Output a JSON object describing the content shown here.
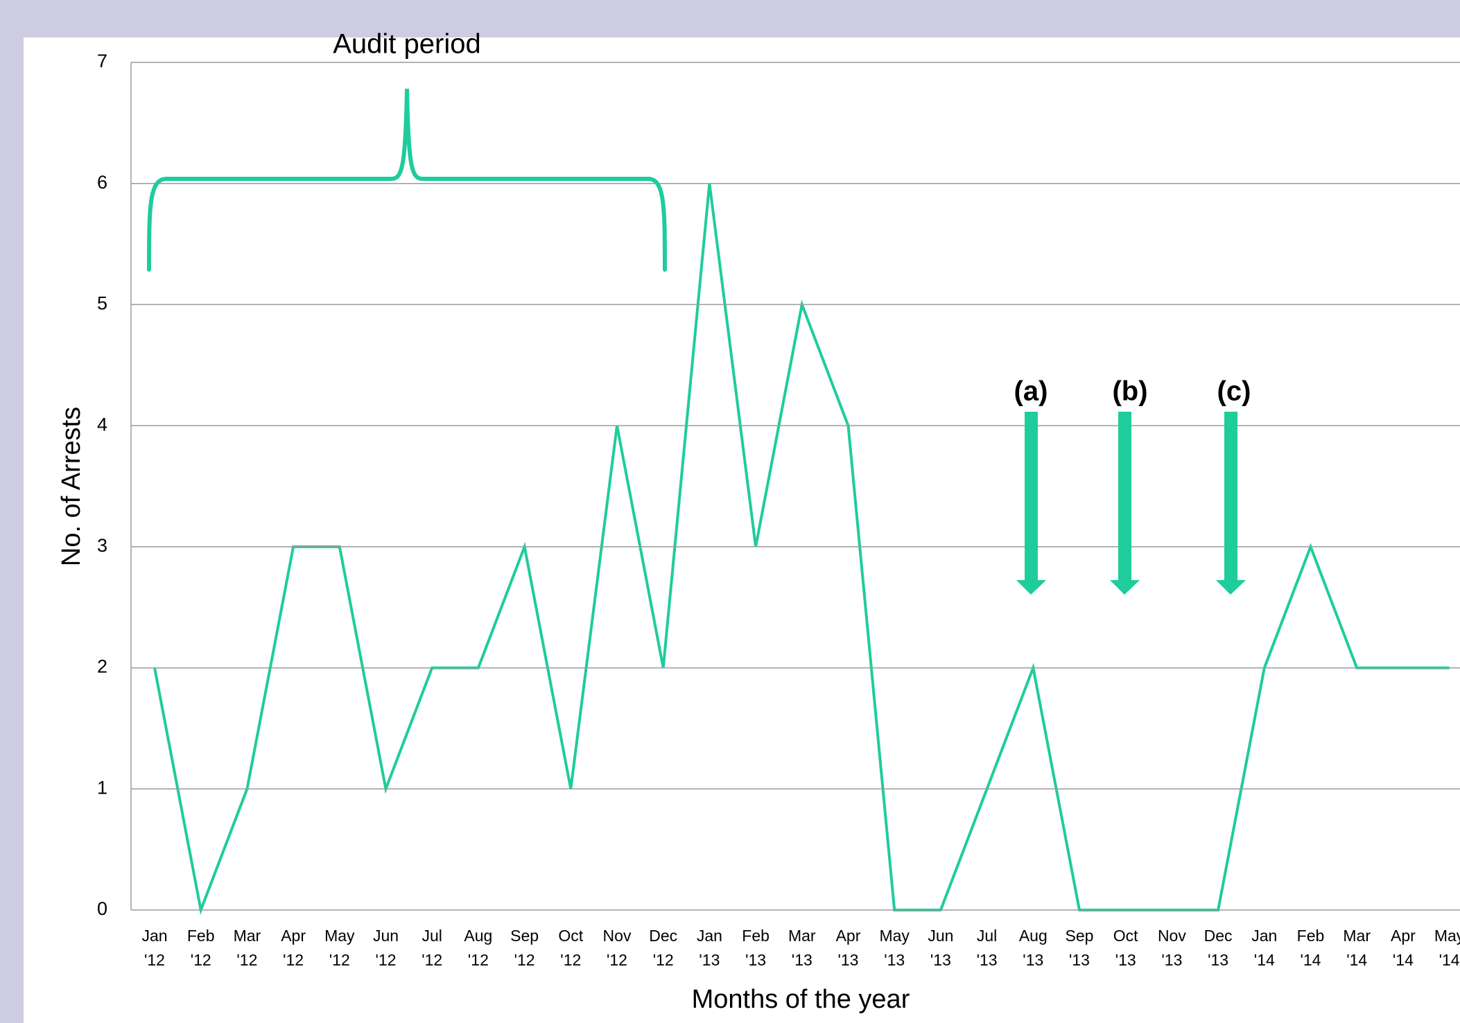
{
  "chart_data": {
    "type": "line",
    "annotations": [
      "Audit period",
      "(a)",
      "(b)",
      "(c)"
    ],
    "ylabel": "No. of Arrests",
    "xlabel": "Months of the year",
    "categories": [
      "Jan '12",
      "Feb '12",
      "Mar '12",
      "Apr '12",
      "May '12",
      "Jun '12",
      "Jul '12",
      "Aug '12",
      "Sep '12",
      "Oct '12",
      "Nov '12",
      "Dec '12",
      "Jan '13",
      "Feb '13",
      "Mar '13",
      "Apr '13",
      "May '13",
      "Jun '13",
      "Jul '13",
      "Aug '13",
      "Sep '13",
      "Oct '13",
      "Nov '13",
      "Dec '13",
      "Jan '14",
      "Feb '14",
      "Mar '14",
      "Apr '14",
      "May '14"
    ],
    "series": [
      {
        "name": "No. of Arrests",
        "color": "#1fcc9c",
        "values": [
          2,
          0,
          1,
          3,
          3,
          1,
          2,
          2,
          3,
          1,
          4,
          2,
          6,
          3,
          5,
          4,
          0,
          0,
          1,
          2,
          0,
          0,
          0,
          0,
          2,
          3,
          2,
          2,
          2
        ]
      }
    ],
    "ylim": [
      0,
      7
    ],
    "yticks": [
      0,
      1,
      2,
      3,
      4,
      5,
      6,
      7
    ],
    "grid": true
  }
}
